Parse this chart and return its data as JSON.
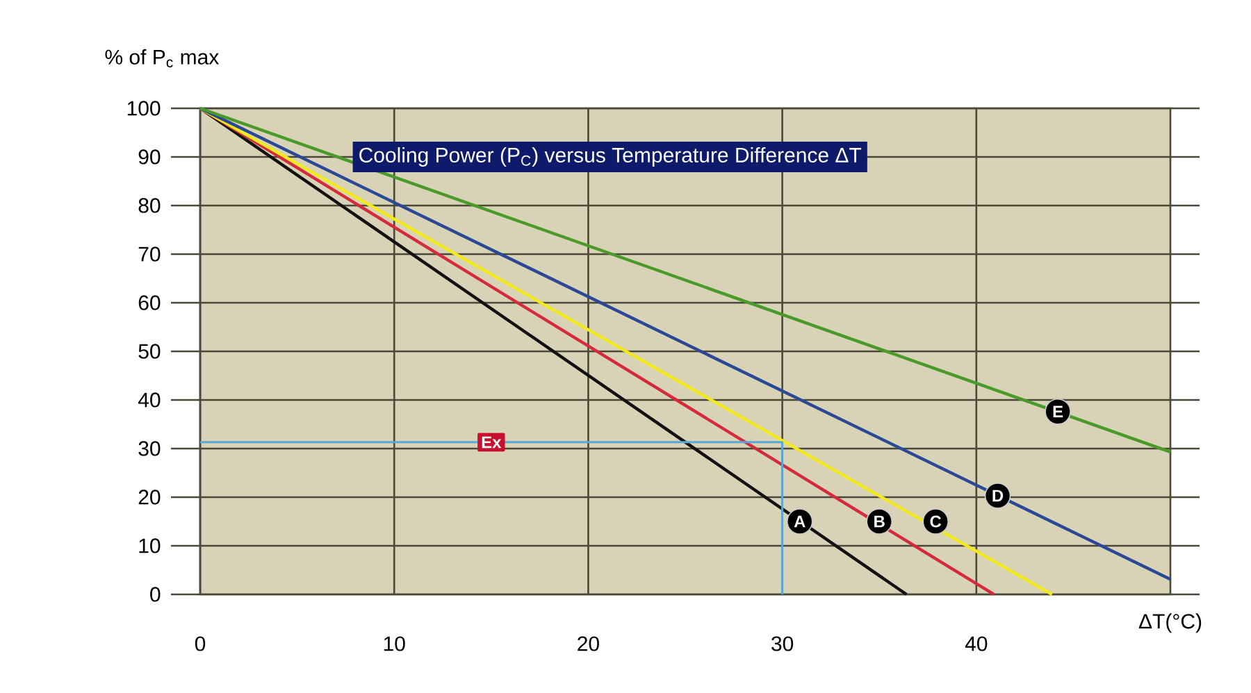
{
  "chart_data": {
    "type": "line",
    "title": "Cooling Power (P$_{C}$) versus Temperature Difference ΔT",
    "xlabel": "ΔT(°C)",
    "ylabel": "% of P$_{c}$ max",
    "xlim": [
      0,
      50
    ],
    "xticks": [
      0,
      10,
      20,
      30,
      40
    ],
    "ylim": [
      0,
      100
    ],
    "yticks": [
      0,
      10,
      20,
      30,
      40,
      50,
      60,
      70,
      80,
      90,
      100
    ],
    "grid": true,
    "series": [
      {
        "color": "#111111",
        "x": [
          0,
          36.4
        ],
        "values": [
          100,
          0
        ]
      },
      {
        "color": "#d42a3a",
        "x": [
          0,
          40.9
        ],
        "values": [
          100,
          0
        ]
      },
      {
        "color": "#f2ea1c",
        "x": [
          0,
          43.9
        ],
        "values": [
          100,
          0
        ]
      },
      {
        "color": "#2a4896",
        "x": [
          0,
          50
        ],
        "values": [
          100,
          3.1
        ]
      },
      {
        "color": "#4a9a2a",
        "x": [
          0,
          50
        ],
        "values": [
          100,
          29.3
        ]
      },
      {
        "color": "#5aa8d8",
        "x": [
          0,
          30,
          30
        ],
        "values": [
          31.3,
          31.3,
          0
        ]
      }
    ],
    "annotations": [
      {
        "text": "A",
        "x": 30.9,
        "y": 15
      },
      {
        "text": "B",
        "x": 35,
        "y": 15
      },
      {
        "text": "C",
        "x": 37.9,
        "y": 15
      },
      {
        "text": "D",
        "x": 41.1,
        "y": 20.3
      },
      {
        "text": "E",
        "x": 44.2,
        "y": 37.6
      },
      {
        "text": "Ex",
        "x": 15,
        "y": 31.3
      }
    ]
  }
}
